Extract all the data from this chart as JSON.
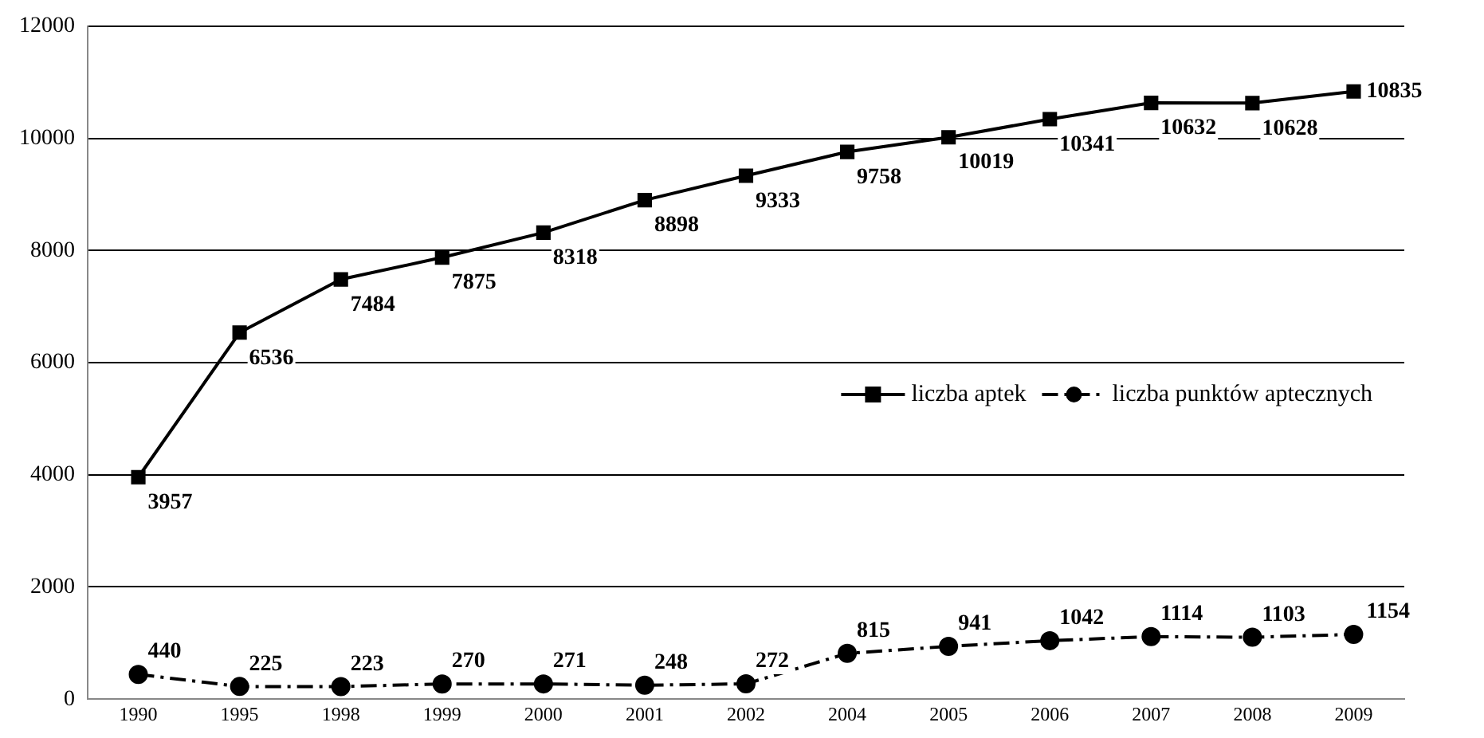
{
  "chart_data": {
    "type": "line",
    "categories": [
      "1990",
      "1995",
      "1998",
      "1999",
      "2000",
      "2001",
      "2002",
      "2004",
      "2005",
      "2006",
      "2007",
      "2008",
      "2009"
    ],
    "series": [
      {
        "name": "liczba aptek",
        "color": "#000000",
        "marker": "square",
        "line_style": "solid",
        "values": [
          3957,
          6536,
          7484,
          7875,
          8318,
          8898,
          9333,
          9758,
          10019,
          10341,
          10632,
          10628,
          10835
        ]
      },
      {
        "name": "liczba punktów aptecznych",
        "color": "#000000",
        "marker": "circle",
        "line_style": "dashed",
        "values": [
          440,
          225,
          223,
          270,
          271,
          248,
          272,
          815,
          941,
          1042,
          1114,
          1103,
          1154
        ]
      }
    ],
    "ylim": [
      0,
      12000
    ],
    "yticks": [
      0,
      2000,
      4000,
      6000,
      8000,
      10000,
      12000
    ],
    "grid": "y",
    "legend": "right",
    "data_labels": true
  }
}
